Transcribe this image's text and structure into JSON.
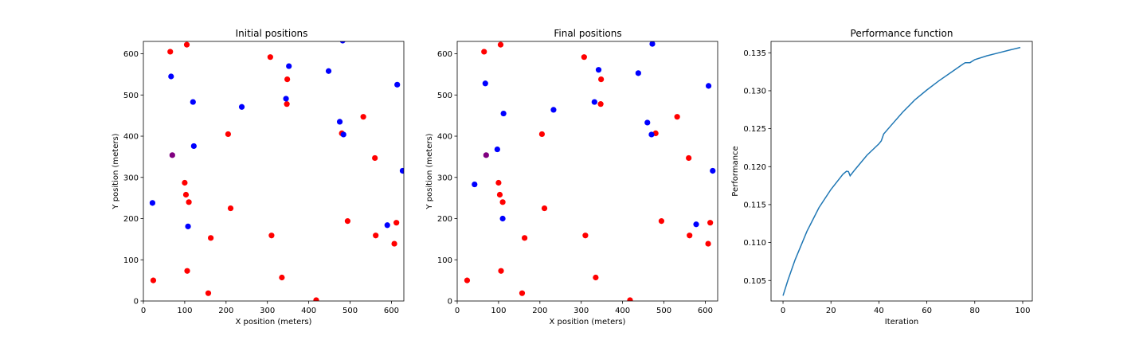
{
  "chart_data": [
    {
      "type": "scatter",
      "title": "Initial positions",
      "xlabel": "X position (meters)",
      "ylabel": "Y position (meters)",
      "xlim": [
        0,
        630
      ],
      "ylim": [
        0,
        630
      ],
      "xticks": [
        0,
        100,
        200,
        300,
        400,
        500,
        600
      ],
      "yticks": [
        0,
        100,
        200,
        300,
        400,
        500,
        600
      ],
      "grid": false,
      "series": [
        {
          "color": "#ff0000",
          "points": [
            [
              65,
              605
            ],
            [
              105,
              622
            ],
            [
              307,
              592
            ],
            [
              348,
              538
            ],
            [
              347,
              478
            ],
            [
              205,
              405
            ],
            [
              532,
              447
            ],
            [
              480,
              407
            ],
            [
              560,
              347
            ],
            [
              100,
              287
            ],
            [
              103,
              258
            ],
            [
              110,
              240
            ],
            [
              211,
              225
            ],
            [
              494,
              194
            ],
            [
              612,
              190
            ],
            [
              163,
              153
            ],
            [
              310,
              159
            ],
            [
              562,
              159
            ],
            [
              607,
              139
            ],
            [
              24,
              50
            ],
            [
              106,
              73
            ],
            [
              335,
              57
            ],
            [
              157,
              19
            ],
            [
              418,
              2
            ]
          ]
        },
        {
          "color": "#0000ff",
          "points": [
            [
              482,
              632
            ],
            [
              67,
              545
            ],
            [
              352,
              570
            ],
            [
              448,
              558
            ],
            [
              614,
              525
            ],
            [
              120,
              483
            ],
            [
              345,
              491
            ],
            [
              238,
              471
            ],
            [
              475,
              435
            ],
            [
              484,
              404
            ],
            [
              122,
              376
            ],
            [
              627,
              316
            ],
            [
              22,
              238
            ],
            [
              108,
              181
            ],
            [
              590,
              184
            ]
          ]
        },
        {
          "color": "#800080",
          "points": [
            [
              70,
              354
            ]
          ]
        }
      ]
    },
    {
      "type": "scatter",
      "title": "Final positions",
      "xlabel": "X position (meters)",
      "ylabel": "Y position (meters)",
      "xlim": [
        0,
        630
      ],
      "ylim": [
        0,
        630
      ],
      "xticks": [
        0,
        100,
        200,
        300,
        400,
        500,
        600
      ],
      "yticks": [
        0,
        100,
        200,
        300,
        400,
        500,
        600
      ],
      "grid": false,
      "series": [
        {
          "color": "#ff0000",
          "points": [
            [
              65,
              605
            ],
            [
              105,
              622
            ],
            [
              307,
              592
            ],
            [
              348,
              538
            ],
            [
              347,
              478
            ],
            [
              205,
              405
            ],
            [
              532,
              447
            ],
            [
              480,
              407
            ],
            [
              560,
              347
            ],
            [
              100,
              287
            ],
            [
              103,
              258
            ],
            [
              110,
              240
            ],
            [
              211,
              225
            ],
            [
              494,
              194
            ],
            [
              612,
              190
            ],
            [
              163,
              153
            ],
            [
              310,
              159
            ],
            [
              562,
              159
            ],
            [
              607,
              139
            ],
            [
              24,
              50
            ],
            [
              106,
              73
            ],
            [
              335,
              57
            ],
            [
              157,
              19
            ],
            [
              418,
              2
            ]
          ]
        },
        {
          "color": "#0000ff",
          "points": [
            [
              472,
              624
            ],
            [
              68,
              528
            ],
            [
              342,
              561
            ],
            [
              438,
              553
            ],
            [
              608,
              522
            ],
            [
              112,
              455
            ],
            [
              332,
              483
            ],
            [
              233,
              464
            ],
            [
              460,
              433
            ],
            [
              470,
              404
            ],
            [
              97,
              368
            ],
            [
              618,
              316
            ],
            [
              42,
              283
            ],
            [
              110,
              200
            ],
            [
              578,
              186
            ]
          ]
        },
        {
          "color": "#800080",
          "points": [
            [
              70,
              354
            ]
          ]
        }
      ]
    },
    {
      "type": "line",
      "title": "Performance function",
      "xlabel": "Iteration",
      "ylabel": "Performance",
      "xlim": [
        -5,
        104
      ],
      "ylim": [
        0.1023,
        0.1365
      ],
      "xticks": [
        0,
        20,
        40,
        60,
        80,
        100
      ],
      "yticks": [
        0.105,
        0.11,
        0.115,
        0.12,
        0.125,
        0.13,
        0.135
      ],
      "grid": false,
      "series": [
        {
          "color": "#1f77b4",
          "points": [
            [
              0,
              0.103
            ],
            [
              2,
              0.105
            ],
            [
              5,
              0.1077
            ],
            [
              10,
              0.1115
            ],
            [
              15,
              0.1146
            ],
            [
              20,
              0.117
            ],
            [
              25,
              0.119
            ],
            [
              26.5,
              0.1194
            ],
            [
              27.3,
              0.11935
            ],
            [
              28,
              0.1188
            ],
            [
              30,
              0.1196
            ],
            [
              35,
              0.1215
            ],
            [
              40,
              0.123
            ],
            [
              41,
              0.1234
            ],
            [
              42,
              0.1243
            ],
            [
              45,
              0.1254
            ],
            [
              50,
              0.1272
            ],
            [
              55,
              0.1288
            ],
            [
              60,
              0.1301
            ],
            [
              65,
              0.1313
            ],
            [
              70,
              0.1324
            ],
            [
              75,
              0.1335
            ],
            [
              76,
              0.1337
            ],
            [
              78,
              0.1337
            ],
            [
              80,
              0.1341
            ],
            [
              85,
              0.1346
            ],
            [
              90,
              0.135
            ],
            [
              95,
              0.1354
            ],
            [
              99,
              0.1357
            ]
          ]
        }
      ]
    }
  ]
}
